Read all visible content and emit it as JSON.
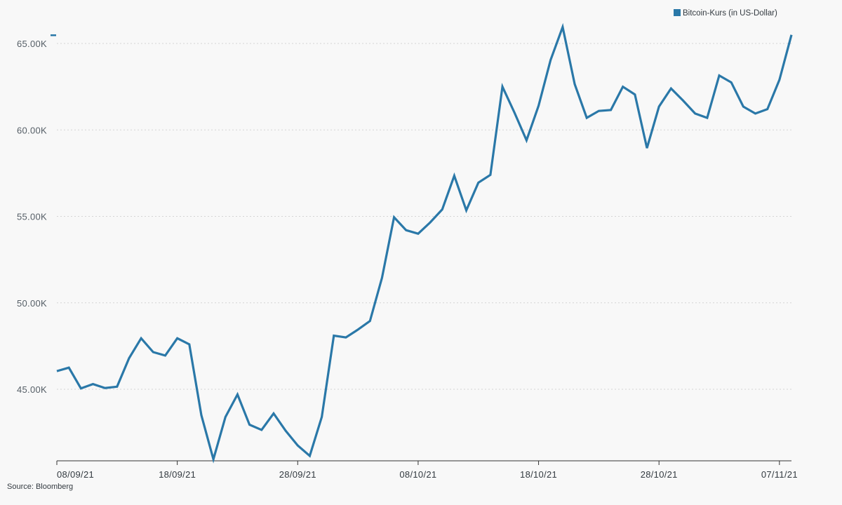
{
  "chart_data": {
    "type": "line",
    "legend": {
      "label": "Bitcoin-Kurs (in US-Dollar)",
      "placement": "top-right",
      "color": "#2a78a8"
    },
    "series": [
      {
        "name": "Bitcoin-Kurs (in US-Dollar)",
        "color": "#2a78a8",
        "values": [
          46050,
          46250,
          45050,
          45300,
          45070,
          45150,
          46800,
          47950,
          47150,
          46950,
          47950,
          47600,
          43500,
          40950,
          43400,
          44700,
          42950,
          42650,
          43600,
          42600,
          41750,
          41150,
          43400,
          48100,
          48000,
          48450,
          48950,
          51450,
          54950,
          54200,
          54000,
          54650,
          55400,
          57350,
          55350,
          56950,
          57400,
          62500,
          61000,
          59400,
          61400,
          64050,
          65950,
          62650,
          60700,
          61100,
          61150,
          62500,
          62050,
          58950,
          61350,
          62400,
          61700,
          60950,
          60700,
          63150,
          62750,
          61350,
          60950,
          61200,
          62900,
          65500
        ]
      }
    ],
    "x_start": "2021-09-08",
    "x_ticks": [
      "08/09/21",
      "18/09/21",
      "28/09/21",
      "08/10/21",
      "18/10/21",
      "28/10/21",
      "07/11/21"
    ],
    "y_ticks": [
      "45.00K",
      "50.00K",
      "55.00K",
      "60.00K",
      "65.00K"
    ],
    "y_tick_values": [
      45000,
      50000,
      55000,
      60000,
      65000
    ],
    "ylim": [
      41000,
      66800
    ],
    "grid": "horizontal dotted",
    "source": "Source: Bloomberg"
  }
}
